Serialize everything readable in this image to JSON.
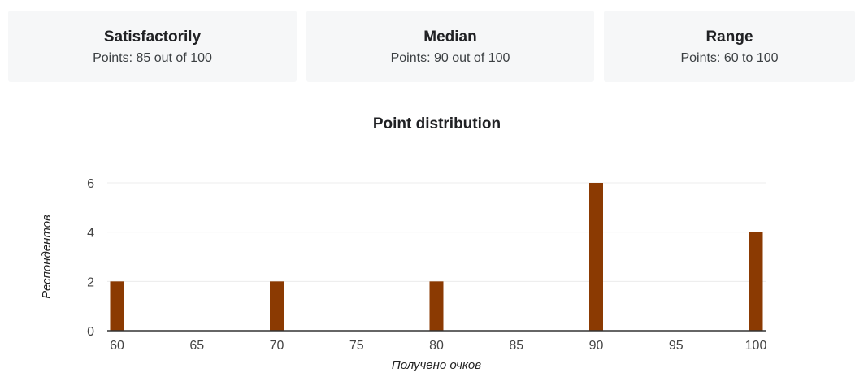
{
  "summary": {
    "cards": [
      {
        "title": "Satisfactorily",
        "value": "Points: 85 out of 100"
      },
      {
        "title": "Median",
        "value": "Points: 90 out of 100"
      },
      {
        "title": "Range",
        "value": "Points: 60 to 100"
      }
    ]
  },
  "chart_data": {
    "type": "bar",
    "title": "Point distribution",
    "xlabel": "Получено очков",
    "ylabel": "Респондентов",
    "x_ticks": [
      60,
      65,
      70,
      75,
      80,
      85,
      90,
      95,
      100
    ],
    "x_tick_labels": [
      "60",
      "65",
      "70",
      "75",
      "80",
      "85",
      "90",
      "95",
      "100"
    ],
    "y_ticks": [
      0,
      2,
      4,
      6
    ],
    "y_tick_labels": [
      "0",
      "2",
      "4",
      "6"
    ],
    "xlim": [
      60,
      100
    ],
    "ylim": [
      0,
      6
    ],
    "grid": true,
    "bar_color": "#8b3a02",
    "x": [
      60,
      70,
      80,
      90,
      100
    ],
    "values": [
      2,
      2,
      2,
      6,
      4
    ]
  }
}
